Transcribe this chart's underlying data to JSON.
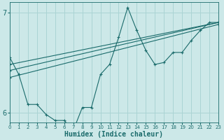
{
  "xlabel": "Humidex (Indice chaleur)",
  "bg_color": "#cce8e8",
  "grid_color": "#aad4d4",
  "line_color": "#1a6b6b",
  "xlim": [
    0,
    23
  ],
  "ylim": [
    5.9,
    7.1
  ],
  "yticks": [
    6,
    7
  ],
  "xticks": [
    0,
    1,
    2,
    3,
    4,
    5,
    6,
    7,
    8,
    9,
    10,
    11,
    12,
    13,
    14,
    15,
    16,
    17,
    18,
    19,
    20,
    21,
    22,
    23
  ],
  "main_series": {
    "x": [
      0,
      1,
      2,
      3,
      4,
      5,
      6,
      7,
      8,
      9,
      10,
      11,
      12,
      13,
      14,
      15,
      16,
      17,
      18,
      19,
      20,
      21,
      22,
      23
    ],
    "y": [
      6.55,
      6.38,
      6.08,
      6.08,
      5.98,
      5.92,
      5.92,
      5.82,
      6.05,
      6.05,
      6.38,
      6.48,
      6.75,
      7.05,
      6.82,
      6.62,
      6.48,
      6.5,
      6.6,
      6.6,
      6.72,
      6.82,
      6.9,
      6.9
    ]
  },
  "smooth_series": [
    {
      "x": [
        0,
        23
      ],
      "y": [
        6.42,
        6.88
      ]
    },
    {
      "x": [
        0,
        23
      ],
      "y": [
        6.42,
        6.88
      ]
    },
    {
      "x": [
        0,
        23
      ],
      "y": [
        6.42,
        6.88
      ]
    }
  ],
  "regression_lines": [
    {
      "x0": 0,
      "y0": 6.35,
      "x1": 23,
      "y1": 6.88
    },
    {
      "x0": 0,
      "y0": 6.42,
      "x1": 23,
      "y1": 6.9
    },
    {
      "x0": 0,
      "y0": 6.48,
      "x1": 23,
      "y1": 6.9
    }
  ]
}
